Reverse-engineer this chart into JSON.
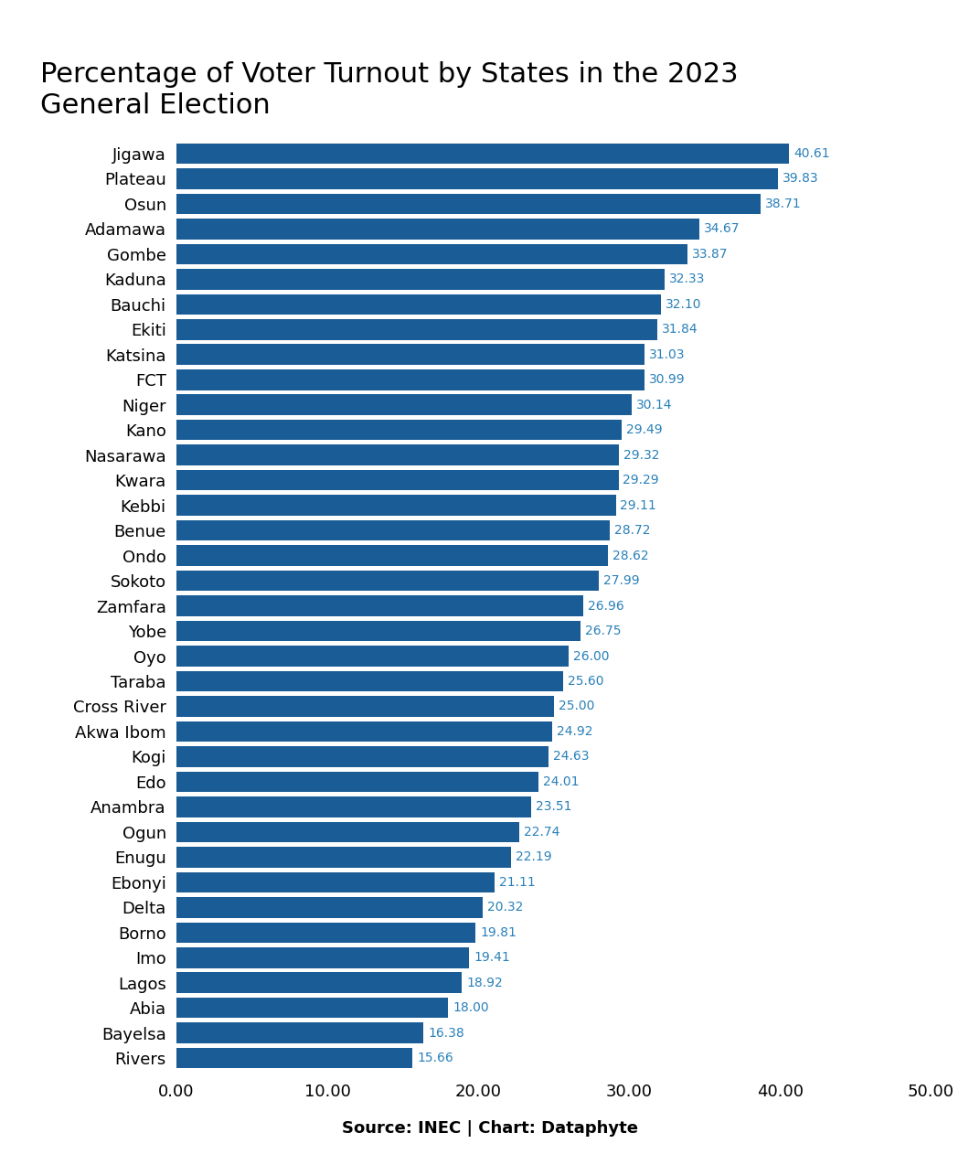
{
  "title": "Percentage of Voter Turnout by States in the 2023\nGeneral Election",
  "source": "Source: INEC | Chart: Dataphyte",
  "bar_color": "#1a5c96",
  "value_color": "#2980b9",
  "background_color": "#ffffff",
  "xlim": [
    0,
    50
  ],
  "xticks": [
    0,
    10,
    20,
    30,
    40,
    50
  ],
  "categories": [
    "Jigawa",
    "Plateau",
    "Osun",
    "Adamawa",
    "Gombe",
    "Kaduna",
    "Bauchi",
    "Ekiti",
    "Katsina",
    "FCT",
    "Niger",
    "Kano",
    "Nasarawa",
    "Kwara",
    "Kebbi",
    "Benue",
    "Ondo",
    "Sokoto",
    "Zamfara",
    "Yobe",
    "Oyo",
    "Taraba",
    "Cross River",
    "Akwa Ibom",
    "Kogi",
    "Edo",
    "Anambra",
    "Ogun",
    "Enugu",
    "Ebonyi",
    "Delta",
    "Borno",
    "Imo",
    "Lagos",
    "Abia",
    "Bayelsa",
    "Rivers"
  ],
  "values": [
    40.61,
    39.83,
    38.71,
    34.67,
    33.87,
    32.33,
    32.1,
    31.84,
    31.03,
    30.99,
    30.14,
    29.49,
    29.32,
    29.29,
    29.11,
    28.72,
    28.62,
    27.99,
    26.96,
    26.75,
    26.0,
    25.6,
    25.0,
    24.92,
    24.63,
    24.01,
    23.51,
    22.74,
    22.19,
    21.11,
    20.32,
    19.81,
    19.41,
    18.92,
    18.0,
    16.38,
    15.66
  ],
  "title_fontsize": 22,
  "ylabel_fontsize": 13,
  "xlabel_fontsize": 13,
  "value_fontsize": 10,
  "bar_height": 0.82
}
